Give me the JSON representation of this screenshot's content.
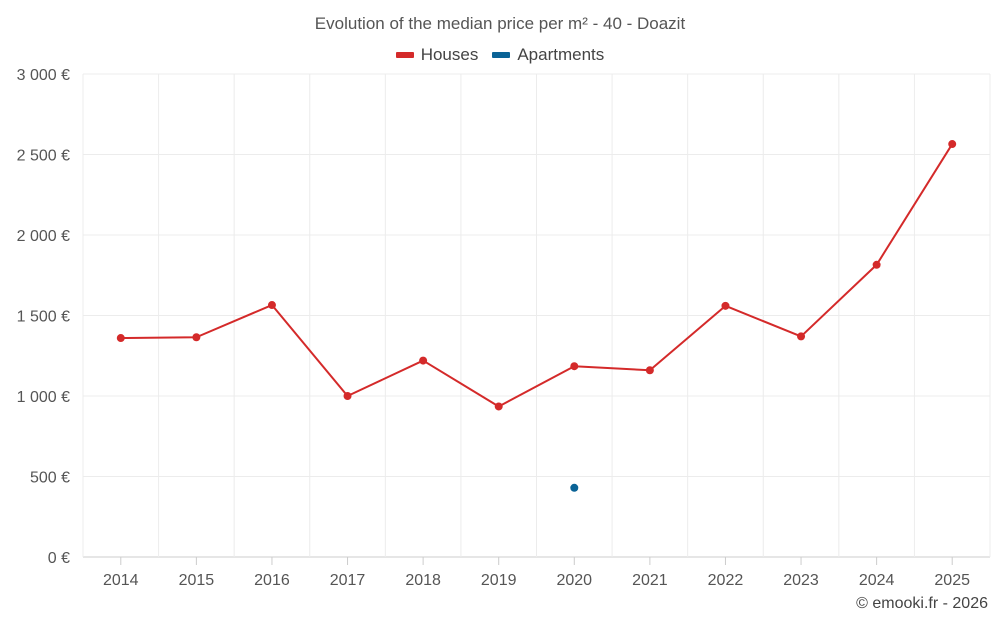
{
  "chart_data": {
    "type": "line",
    "title": "Evolution of the median price per m² - 40 - Doazit",
    "xlabel": "",
    "ylabel": "",
    "categories": [
      "2014",
      "2015",
      "2016",
      "2017",
      "2018",
      "2019",
      "2020",
      "2021",
      "2022",
      "2023",
      "2024",
      "2025"
    ],
    "ylim": [
      0,
      3000
    ],
    "yticks": [
      0,
      500,
      1000,
      1500,
      2000,
      2500,
      3000
    ],
    "ytick_labels": [
      "0 €",
      "500 €",
      "1 000 €",
      "1 500 €",
      "2 000 €",
      "2 500 €",
      "3 000 €"
    ],
    "grid": true,
    "legend_position": "top-center",
    "series": [
      {
        "name": "Houses",
        "color": "#d42a2a",
        "values": [
          1360,
          1365,
          1565,
          1000,
          1220,
          935,
          1185,
          1160,
          1560,
          1370,
          1815,
          2565
        ]
      },
      {
        "name": "Apartments",
        "color": "#0a6396",
        "values": [
          null,
          null,
          null,
          null,
          null,
          null,
          430,
          null,
          null,
          null,
          null,
          null
        ]
      }
    ]
  },
  "watermark": "© emooki.fr - 2026"
}
